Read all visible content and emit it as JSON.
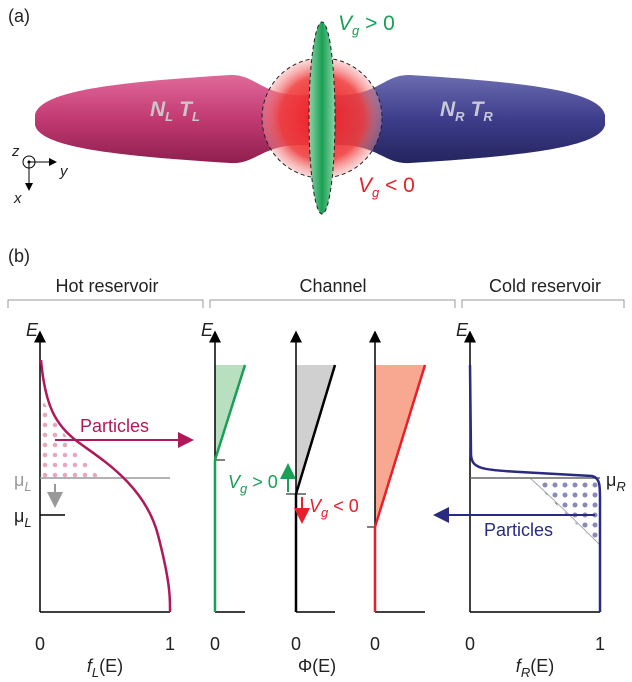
{
  "panel_a": {
    "label": "(a)",
    "gate_positive": {
      "symbol": "V",
      "sub": "g",
      "relation": " > 0"
    },
    "gate_negative": {
      "symbol": "V",
      "sub": "g",
      "relation": " < 0"
    },
    "left_reservoir": {
      "n": "N",
      "n_sub": "L",
      "t": "T",
      "t_sub": "L"
    },
    "right_reservoir": {
      "n": "N",
      "n_sub": "R",
      "t": "T",
      "t_sub": "R"
    },
    "axes": {
      "z": "z",
      "y": "y",
      "x": "x"
    }
  },
  "panel_b": {
    "label": "(b)",
    "headers": [
      "Hot reservoir",
      "Channel",
      "Cold reservoir"
    ],
    "energy_label": "E",
    "hot": {
      "particles": "Particles",
      "mu_high": {
        "symbol": "μ",
        "sub": "L"
      },
      "mu_low": {
        "symbol": "μ",
        "sub": "L"
      },
      "tick_0": "0",
      "tick_1": "1",
      "xlabel": {
        "f": "f",
        "sub": "L",
        "arg": "(E)"
      }
    },
    "channel": {
      "gate_positive": {
        "symbol": "V",
        "sub": "g",
        "relation": " > 0"
      },
      "gate_negative": {
        "symbol": "V",
        "sub": "g",
        "relation": " < 0"
      },
      "ticks": [
        "0",
        "0",
        "0"
      ],
      "xlabel": "Φ(E)"
    },
    "cold": {
      "particles": "Particles",
      "mu": {
        "symbol": "μ",
        "sub": "R"
      },
      "tick_0": "0",
      "tick_1": "1",
      "xlabel": {
        "f": "f",
        "sub": "R",
        "arg": "(E)"
      }
    }
  }
}
